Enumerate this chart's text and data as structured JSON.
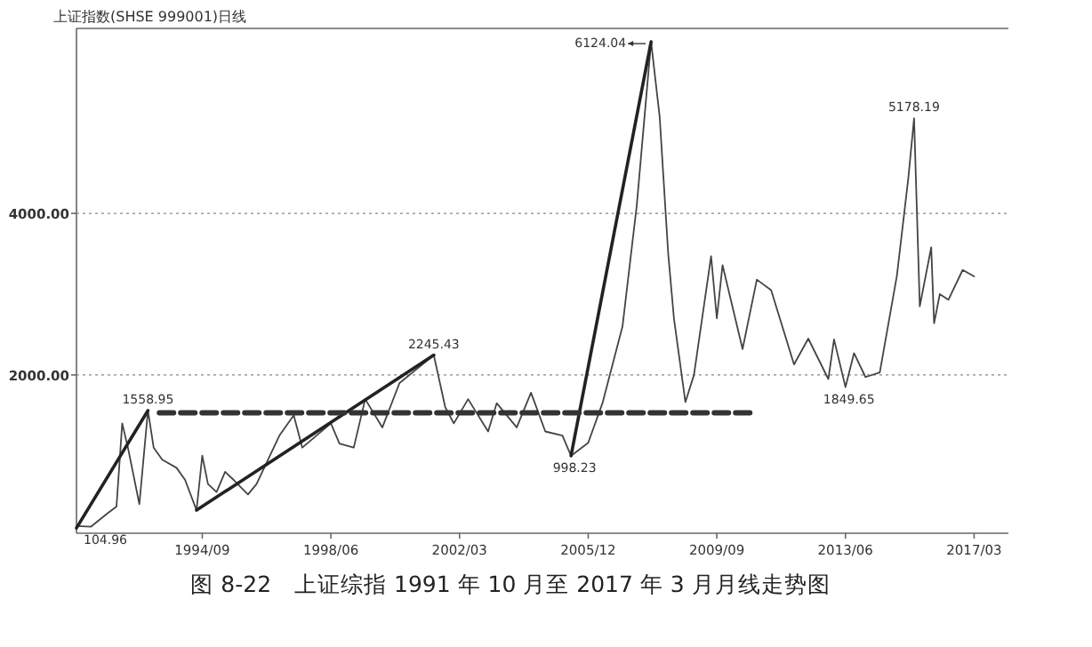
{
  "chart_data": {
    "type": "line",
    "title": "上证指数(SHSE 999001)日线",
    "xlim": [
      "1991-01",
      "2018-03"
    ],
    "ylim": [
      40,
      6290
    ],
    "xticks": [
      {
        "value": "1994-09",
        "label": "1994/09"
      },
      {
        "value": "1998-06",
        "label": "1998/06"
      },
      {
        "value": "2002-03",
        "label": "2002/03"
      },
      {
        "value": "2005-12",
        "label": "2005/12"
      },
      {
        "value": "2009-09",
        "label": "2009/09"
      },
      {
        "value": "2013-06",
        "label": "2013/06"
      },
      {
        "value": "2017-03",
        "label": "2017/03"
      }
    ],
    "yticks": [
      {
        "value": 2000,
        "label": "2000.00"
      },
      {
        "value": 4000,
        "label": "4000.00"
      }
    ],
    "grid": "y",
    "series": [
      {
        "color": "#444444",
        "x": [
          "1991-01",
          "1991-06",
          "1991-12",
          "1992-03",
          "1992-05",
          "1992-07",
          "1992-11",
          "1993-02",
          "1993-04",
          "1993-07",
          "1993-12",
          "1994-03",
          "1994-07",
          "1994-09",
          "1994-11",
          "1995-02",
          "1995-05",
          "1995-08",
          "1996-01",
          "1996-04",
          "1996-12",
          "1997-05",
          "1997-08",
          "1998-06",
          "1998-09",
          "1999-02",
          "1999-06",
          "1999-12",
          "2000-06",
          "2001-06",
          "2001-10",
          "2002-01",
          "2002-06",
          "2003-01",
          "2003-04",
          "2003-11",
          "2004-04",
          "2004-09",
          "2005-03",
          "2005-06",
          "2005-12",
          "2006-05",
          "2006-12",
          "2007-05",
          "2007-10",
          "2008-01",
          "2008-04",
          "2008-06",
          "2008-10",
          "2009-01",
          "2009-07",
          "2009-09",
          "2009-11",
          "2010-06",
          "2010-11",
          "2011-04",
          "2011-12",
          "2012-05",
          "2012-12",
          "2013-02",
          "2013-06",
          "2013-09",
          "2014-01",
          "2014-06",
          "2014-12",
          "2015-04",
          "2015-06",
          "2015-08",
          "2015-12",
          "2016-01",
          "2016-03",
          "2016-06",
          "2016-11",
          "2017-03"
        ],
        "values": [
          130,
          120,
          290,
          370,
          1400,
          1100,
          400,
          1558.95,
          1100,
          950,
          850,
          700,
          325,
          1000,
          650,
          550,
          800,
          700,
          520,
          650,
          1250,
          1500,
          1100,
          1400,
          1150,
          1100,
          1700,
          1350,
          1900,
          2245.43,
          1600,
          1400,
          1700,
          1300,
          1650,
          1350,
          1780,
          1300,
          1250,
          998.23,
          1160,
          1650,
          2600,
          4100,
          6124.04,
          5200,
          3500,
          2700,
          1664,
          2000,
          3470,
          2700,
          3360,
          2320,
          3180,
          3050,
          2130,
          2450,
          1949,
          2440,
          1849.65,
          2270,
          1974,
          2030,
          3230,
          4440,
          5178.19,
          2850,
          3580,
          2640,
          3000,
          2930,
          3300,
          3220
        ]
      },
      {
        "color": "#222222",
        "x": [
          "1991-01",
          "1993-02"
        ],
        "values": [
          104.96,
          1558.95
        ]
      },
      {
        "color": "#222222",
        "x": [
          "1994-07",
          "2001-06"
        ],
        "values": [
          325,
          2245.43
        ]
      },
      {
        "color": "#222222",
        "x": [
          "2005-06",
          "2007-10"
        ],
        "values": [
          998.23,
          6124.04
        ]
      },
      {
        "color": "#333333",
        "x": [
          "1993-06",
          "2010-11"
        ],
        "values": [
          1530,
          1530
        ],
        "line_style": "dashed"
      }
    ],
    "annotations": [
      {
        "text": "104.96",
        "x": "1991-01",
        "y": 104.96
      },
      {
        "text": "1558.95",
        "x": "1993-02",
        "y": 1558.95
      },
      {
        "text": "2245.43",
        "x": "2001-06",
        "y": 2245.43
      },
      {
        "text": "998.23",
        "x": "2005-06",
        "y": 998.23
      },
      {
        "text": "6124.04",
        "x": "2007-10",
        "y": 6124.04
      },
      {
        "text": "1849.65",
        "x": "2013-06",
        "y": 1849.65
      },
      {
        "text": "5178.19",
        "x": "2015-06",
        "y": 5178.19
      },
      "图 8-22　上证综指 1991 年 10 月至 2017 年 3 月月线走势图"
    ]
  }
}
